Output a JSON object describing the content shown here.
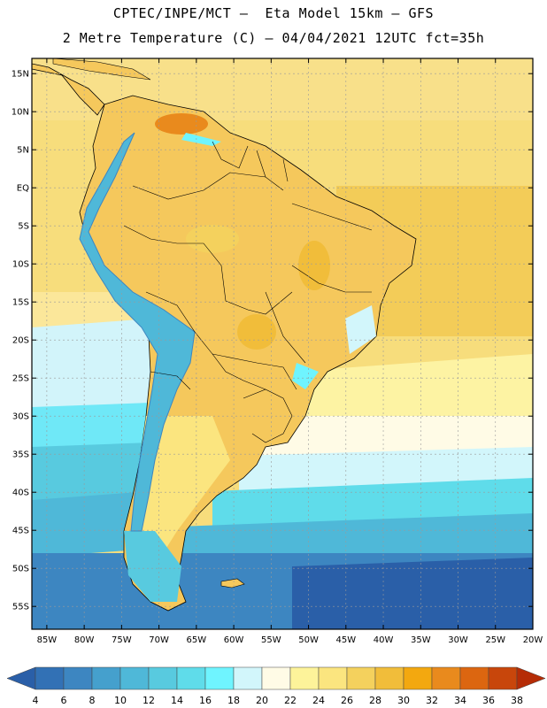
{
  "header": {
    "line1": "CPTEC/INPE/MCT –  Eta Model 15km – GFS",
    "line2": "2 Metre Temperature (C) – 04/04/2021 12UTC fct=35h"
  },
  "map": {
    "lat_labels": [
      "15N",
      "10N",
      "5N",
      "EQ",
      "5S",
      "10S",
      "15S",
      "20S",
      "25S",
      "30S",
      "35S",
      "40S",
      "45S",
      "50S",
      "55S"
    ],
    "lon_labels": [
      "85W",
      "80W",
      "75W",
      "70W",
      "65W",
      "60W",
      "55W",
      "50W",
      "45W",
      "40W",
      "35W",
      "30W",
      "25W",
      "20W"
    ],
    "ocean_color": "#f2d36a",
    "land_color": "#f5c85c",
    "grid_color": "#9a9a9a"
  },
  "colorbar": {
    "labels": [
      "4",
      "6",
      "8",
      "10",
      "12",
      "14",
      "16",
      "18",
      "20",
      "22",
      "24",
      "26",
      "28",
      "30",
      "32",
      "34",
      "36",
      "38"
    ],
    "colors": [
      "#2a5fa8",
      "#3271b5",
      "#3d86c1",
      "#45a0cd",
      "#4fb8d8",
      "#58cadf",
      "#5fdcea",
      "#6ff4ff",
      "#d2f6fb",
      "#fffbe6",
      "#fdf39a",
      "#fbe57f",
      "#f4d15d",
      "#f1bd3a",
      "#f3a80f",
      "#e98a1d",
      "#dc6610",
      "#c8460b",
      "#b52c06"
    ]
  }
}
